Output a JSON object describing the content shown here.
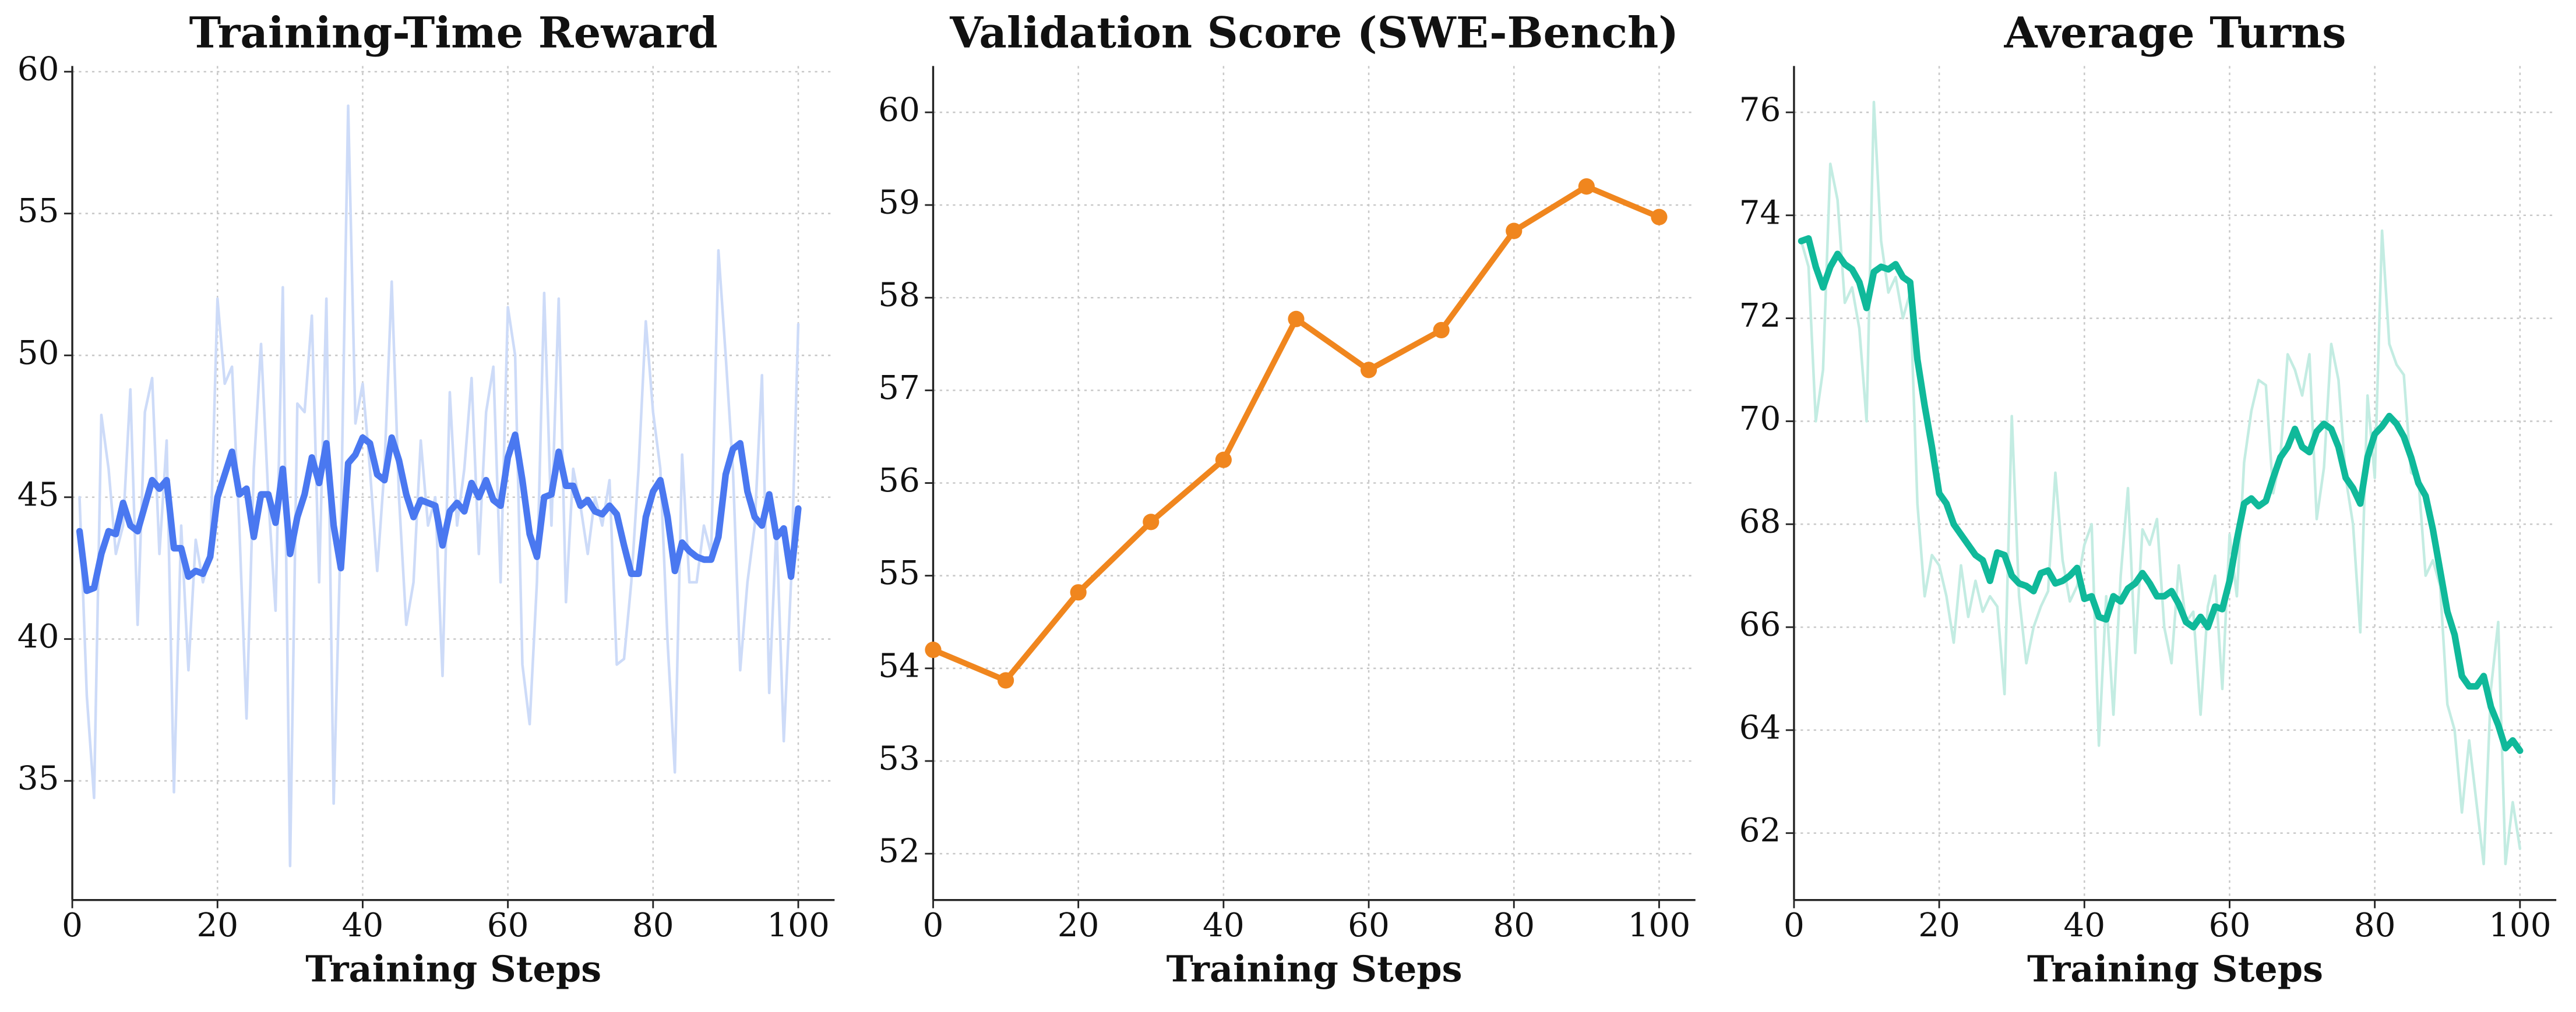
{
  "chart_data": [
    {
      "type": "line",
      "title": "Training-Time Reward",
      "xlabel": "Training Steps",
      "xlim": [
        0,
        105
      ],
      "ylim": [
        30.8,
        60.2
      ],
      "xticks": [
        0,
        20,
        40,
        60,
        80,
        100
      ],
      "yticks": [
        35,
        40,
        45,
        50,
        55,
        60
      ],
      "grid": true,
      "x": [
        1,
        2,
        3,
        4,
        5,
        6,
        7,
        8,
        9,
        10,
        11,
        12,
        13,
        14,
        15,
        16,
        17,
        18,
        19,
        20,
        21,
        22,
        23,
        24,
        25,
        26,
        27,
        28,
        29,
        30,
        31,
        32,
        33,
        34,
        35,
        36,
        37,
        38,
        39,
        40,
        41,
        42,
        43,
        44,
        45,
        46,
        47,
        48,
        49,
        50,
        51,
        52,
        53,
        54,
        55,
        56,
        57,
        58,
        59,
        60,
        61,
        62,
        63,
        64,
        65,
        66,
        67,
        68,
        69,
        70,
        71,
        72,
        73,
        74,
        75,
        76,
        77,
        78,
        79,
        80,
        81,
        82,
        83,
        84,
        85,
        86,
        87,
        88,
        89,
        90,
        91,
        92,
        93,
        94,
        95,
        96,
        97,
        98,
        99,
        100
      ],
      "series": [
        {
          "color": "#cddbf8",
          "width": 1.6,
          "values": [
            45,
            38,
            34.4,
            47.9,
            46,
            43,
            44,
            48.8,
            40.5,
            48,
            49.2,
            43,
            47,
            34.6,
            44,
            38.9,
            43.5,
            42,
            43,
            52,
            49,
            49.6,
            44,
            37.2,
            46,
            50.4,
            45,
            41,
            52.4,
            32,
            48.3,
            48,
            51.4,
            42,
            52,
            34.2,
            44,
            58.8,
            47.6,
            49,
            46,
            42.4,
            46,
            52.6,
            45,
            40.5,
            42,
            47,
            44,
            45,
            38.7,
            48.7,
            44,
            46,
            49.2,
            43,
            48,
            49.6,
            42,
            51.7,
            50,
            39.1,
            37,
            42,
            52.2,
            44,
            52,
            41.3,
            46,
            44.7,
            43,
            45,
            44,
            45.6,
            39.1,
            39.3,
            42,
            46,
            51.2,
            48,
            46,
            39.9,
            35.3,
            46.5,
            42,
            42,
            44,
            43,
            53.7,
            50,
            46,
            38.9,
            42,
            44,
            49.3,
            38.1,
            44,
            36.4,
            42,
            51.1
          ]
        },
        {
          "color": "#4a78f0",
          "width": 4,
          "values": [
            43.8,
            41.7,
            41.8,
            43,
            43.8,
            43.7,
            44.8,
            44,
            43.8,
            44.7,
            45.6,
            45.3,
            45.6,
            43.2,
            43.2,
            42.2,
            42.4,
            42.3,
            42.9,
            45,
            45.8,
            46.6,
            45.1,
            45.3,
            43.6,
            45.1,
            45.1,
            44.1,
            46,
            43,
            44.3,
            45.1,
            46.4,
            45.5,
            46.9,
            44,
            42.5,
            46.2,
            46.5,
            47.1,
            46.9,
            45.8,
            45.6,
            47.1,
            46.3,
            45.1,
            44.3,
            44.9,
            44.8,
            44.7,
            43.3,
            44.5,
            44.8,
            44.5,
            45.5,
            45,
            45.6,
            44.9,
            44.7,
            46.4,
            47.2,
            45.6,
            43.7,
            42.9,
            45,
            45.1,
            46.6,
            45.4,
            45.4,
            44.7,
            44.9,
            44.5,
            44.4,
            44.7,
            44.4,
            43.3,
            42.3,
            42.3,
            44.3,
            45.2,
            45.6,
            44.3,
            42.4,
            43.4,
            43.1,
            42.9,
            42.8,
            42.8,
            43.6,
            45.8,
            46.7,
            46.9,
            45.2,
            44.3,
            44,
            45.1,
            43.6,
            43.9,
            42.2,
            44.6
          ]
        }
      ]
    },
    {
      "type": "line",
      "title": "Validation Score (SWE-Bench)",
      "xlabel": "Training Steps",
      "xlim": [
        0,
        105
      ],
      "ylim": [
        51.5,
        60.5
      ],
      "xticks": [
        0,
        20,
        40,
        60,
        80,
        100
      ],
      "yticks": [
        52,
        53,
        54,
        55,
        56,
        57,
        58,
        59,
        60
      ],
      "grid": true,
      "x": [
        0,
        10,
        20,
        30,
        40,
        50,
        60,
        70,
        80,
        90,
        100
      ],
      "series": [
        {
          "color": "#f0861e",
          "width": 3.5,
          "marker": "o",
          "values": [
            54.2,
            53.87,
            54.82,
            55.58,
            56.25,
            57.77,
            57.22,
            57.65,
            58.72,
            59.2,
            58.87
          ]
        }
      ]
    },
    {
      "type": "line",
      "title": "Average Turns",
      "xlabel": "Training Steps",
      "xlim": [
        0,
        105
      ],
      "ylim": [
        60.7,
        76.9
      ],
      "xticks": [
        0,
        20,
        40,
        60,
        80,
        100
      ],
      "yticks": [
        62,
        64,
        66,
        68,
        70,
        72,
        74,
        76
      ],
      "grid": true,
      "x": [
        1,
        2,
        3,
        4,
        5,
        6,
        7,
        8,
        9,
        10,
        11,
        12,
        13,
        14,
        15,
        16,
        17,
        18,
        19,
        20,
        21,
        22,
        23,
        24,
        25,
        26,
        27,
        28,
        29,
        30,
        31,
        32,
        33,
        34,
        35,
        36,
        37,
        38,
        39,
        40,
        41,
        42,
        43,
        44,
        45,
        46,
        47,
        48,
        49,
        50,
        51,
        52,
        53,
        54,
        55,
        56,
        57,
        58,
        59,
        60,
        61,
        62,
        63,
        64,
        65,
        66,
        67,
        68,
        69,
        70,
        71,
        72,
        73,
        74,
        75,
        76,
        77,
        78,
        79,
        80,
        81,
        82,
        83,
        84,
        85,
        86,
        87,
        88,
        89,
        90,
        91,
        92,
        93,
        94,
        95,
        96,
        97,
        98,
        99,
        100
      ],
      "series": [
        {
          "color": "#c3ece2",
          "width": 1.6,
          "values": [
            73.5,
            73,
            70,
            71,
            75,
            74.3,
            72.3,
            72.6,
            71.8,
            70,
            76.2,
            73.5,
            72.5,
            72.8,
            72,
            72.5,
            68.4,
            66.6,
            67.4,
            67.2,
            66.6,
            65.7,
            67.2,
            66.2,
            66.9,
            66.3,
            66.6,
            66.4,
            64.7,
            70.1,
            66.6,
            65.3,
            66,
            66.4,
            66.7,
            69,
            67.3,
            66.5,
            66.8,
            67.6,
            68,
            63.7,
            66.6,
            64.3,
            67,
            68.7,
            65.5,
            67.9,
            67.6,
            68.1,
            66,
            65.3,
            67.2,
            66.1,
            66.3,
            64.3,
            66.4,
            67,
            64.8,
            67.8,
            66.6,
            69.2,
            70.2,
            70.8,
            70.7,
            68.6,
            69.3,
            71.3,
            71,
            70.5,
            71.3,
            68.1,
            69.1,
            71.5,
            70.8,
            68.9,
            68,
            65.9,
            70.5,
            68.9,
            73.7,
            71.5,
            71.1,
            70.9,
            69,
            68.9,
            67,
            67.3,
            66.8,
            64.5,
            64,
            62.4,
            63.8,
            62.6,
            61.4,
            64.8,
            66.1,
            61.4,
            62.6,
            61.7
          ]
        },
        {
          "color": "#10b99a",
          "width": 4,
          "values": [
            73.5,
            73.55,
            73,
            72.6,
            73,
            73.25,
            73.05,
            72.95,
            72.7,
            72.2,
            72.9,
            73,
            72.95,
            73.05,
            72.8,
            72.7,
            71.2,
            70.3,
            69.5,
            68.6,
            68.4,
            68,
            67.8,
            67.6,
            67.4,
            67.3,
            66.9,
            67.45,
            67.4,
            67,
            66.85,
            66.8,
            66.7,
            67.05,
            67.1,
            66.85,
            66.9,
            67,
            67.15,
            66.55,
            66.6,
            66.2,
            66.15,
            66.6,
            66.5,
            66.75,
            66.85,
            67.05,
            66.85,
            66.6,
            66.6,
            66.7,
            66.45,
            66.1,
            66,
            66.2,
            66,
            66.4,
            66.35,
            66.9,
            67.7,
            68.4,
            68.5,
            68.35,
            68.45,
            68.9,
            69.3,
            69.5,
            69.85,
            69.5,
            69.4,
            69.8,
            69.95,
            69.85,
            69.5,
            68.9,
            68.7,
            68.4,
            69.3,
            69.75,
            69.9,
            70.1,
            69.95,
            69.7,
            69.3,
            68.8,
            68.55,
            67.9,
            67.1,
            66.3,
            65.85,
            65.05,
            64.85,
            64.85,
            65.05,
            64.45,
            64.1,
            63.65,
            63.8,
            63.6
          ]
        }
      ]
    }
  ]
}
